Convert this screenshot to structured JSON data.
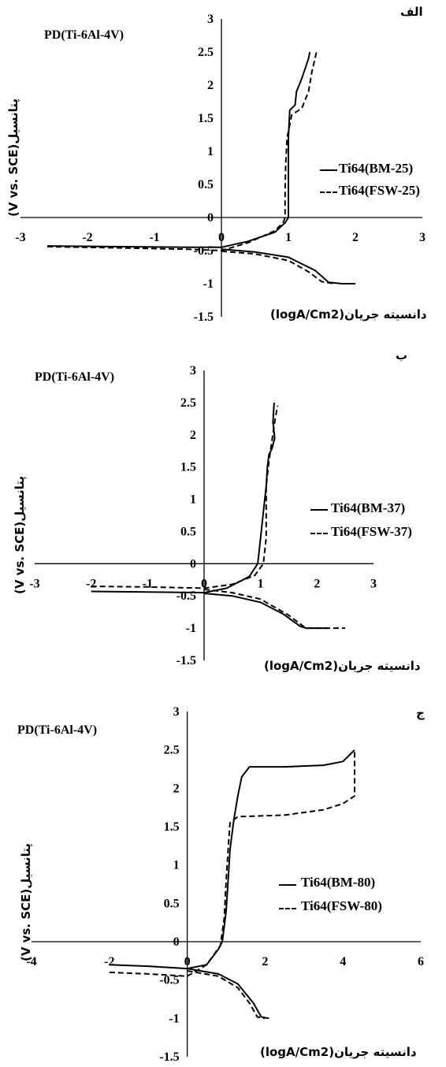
{
  "chart_data": [
    {
      "type": "line",
      "panel_id": "الف",
      "title": "PD(Ti-6Al-4V)",
      "ylabel": "(V vs. SCE)پتانسیل",
      "xlabel": "(logA/Cm2)دانسیته جریان",
      "xlim": [
        -3,
        3
      ],
      "ylim": [
        -1.5,
        3
      ],
      "xticks": [
        "-3",
        "-2",
        "-1",
        "0",
        "1",
        "2",
        "3"
      ],
      "yticks": [
        "-1.5",
        "-1",
        "-0.5",
        "0",
        "0.5",
        "1",
        "1.5",
        "2",
        "2.5",
        "3"
      ],
      "legend_position": "right",
      "series": [
        {
          "name": "Ti64(BM-25)",
          "style": "solid",
          "points": [
            [
              -2.6,
              -0.43
            ],
            [
              -1.5,
              -0.44
            ],
            [
              -0.5,
              -0.45
            ],
            [
              0.0,
              -0.45
            ],
            [
              0.4,
              -0.36
            ],
            [
              0.8,
              -0.22
            ],
            [
              0.95,
              -0.08
            ],
            [
              1.0,
              0.0
            ],
            [
              1.0,
              0.3
            ],
            [
              1.0,
              0.8
            ],
            [
              1.0,
              1.2
            ],
            [
              1.02,
              1.62
            ],
            [
              1.1,
              1.7
            ],
            [
              1.12,
              1.9
            ],
            [
              1.2,
              2.1
            ],
            [
              1.3,
              2.4
            ],
            [
              1.32,
              2.5
            ]
          ]
        },
        {
          "name": "",
          "style": "solid",
          "points": [
            [
              0.0,
              -0.48
            ],
            [
              0.5,
              -0.52
            ],
            [
              1.0,
              -0.6
            ],
            [
              1.4,
              -0.8
            ],
            [
              1.6,
              -0.98
            ],
            [
              1.8,
              -1.0
            ],
            [
              2.0,
              -1.0
            ]
          ]
        },
        {
          "name": "Ti64(FSW-25)",
          "style": "dashed",
          "points": [
            [
              -2.6,
              -0.44
            ],
            [
              -1.5,
              -0.46
            ],
            [
              -0.5,
              -0.48
            ],
            [
              0.0,
              -0.5
            ],
            [
              0.4,
              -0.38
            ],
            [
              0.8,
              -0.2
            ],
            [
              0.92,
              -0.08
            ],
            [
              0.95,
              0.0
            ],
            [
              0.95,
              0.4
            ],
            [
              0.96,
              0.8
            ],
            [
              0.98,
              1.2
            ],
            [
              1.05,
              1.55
            ],
            [
              1.2,
              1.65
            ],
            [
              1.3,
              1.9
            ],
            [
              1.35,
              2.2
            ],
            [
              1.42,
              2.5
            ]
          ]
        },
        {
          "name": "",
          "style": "dashed",
          "points": [
            [
              0.0,
              -0.51
            ],
            [
              0.5,
              -0.55
            ],
            [
              1.0,
              -0.65
            ],
            [
              1.3,
              -0.82
            ],
            [
              1.5,
              -0.97
            ],
            [
              1.7,
              -1.0
            ]
          ]
        }
      ]
    },
    {
      "type": "line",
      "panel_id": "ب",
      "title": "PD(Ti-6Al-4V)",
      "ylabel": "(V vs. SCE)پتانسیل",
      "xlabel": "(logA/Cm2)دانسیته جریان",
      "xlim": [
        -3,
        3
      ],
      "ylim": [
        -1.5,
        3
      ],
      "xticks": [
        "-3",
        "-2",
        "-1",
        "0",
        "1",
        "2",
        "3"
      ],
      "yticks": [
        "-1.5",
        "-1",
        "-0.5",
        "0",
        "0.5",
        "1",
        "1.5",
        "2",
        "2.5",
        "3"
      ],
      "legend_position": "right",
      "series": [
        {
          "name": "Ti64(BM-37)",
          "style": "solid",
          "points": [
            [
              -2.0,
              -0.43
            ],
            [
              -1.0,
              -0.44
            ],
            [
              0.0,
              -0.45
            ],
            [
              0.4,
              -0.38
            ],
            [
              0.8,
              -0.2
            ],
            [
              0.95,
              0.0
            ],
            [
              1.0,
              0.4
            ],
            [
              1.05,
              0.8
            ],
            [
              1.1,
              1.2
            ],
            [
              1.12,
              1.5
            ],
            [
              1.15,
              1.7
            ],
            [
              1.2,
              1.78
            ],
            [
              1.25,
              1.95
            ],
            [
              1.22,
              2.2
            ],
            [
              1.24,
              2.5
            ]
          ]
        },
        {
          "name": "",
          "style": "solid",
          "points": [
            [
              0.0,
              -0.46
            ],
            [
              0.5,
              -0.5
            ],
            [
              1.0,
              -0.6
            ],
            [
              1.4,
              -0.78
            ],
            [
              1.7,
              -0.97
            ],
            [
              1.8,
              -1.0
            ],
            [
              2.2,
              -1.0
            ]
          ]
        },
        {
          "name": "Ti64(FSW-37)",
          "style": "dashed",
          "points": [
            [
              -2.0,
              -0.35
            ],
            [
              -1.0,
              -0.36
            ],
            [
              0.0,
              -0.38
            ],
            [
              0.5,
              -0.32
            ],
            [
              0.9,
              -0.18
            ],
            [
              1.05,
              0.0
            ],
            [
              1.1,
              0.4
            ],
            [
              1.1,
              0.8
            ],
            [
              1.1,
              1.2
            ],
            [
              1.15,
              1.6
            ],
            [
              1.2,
              1.9
            ],
            [
              1.25,
              2.2
            ],
            [
              1.3,
              2.45
            ]
          ]
        },
        {
          "name": "",
          "style": "dashed",
          "points": [
            [
              0.0,
              -0.4
            ],
            [
              0.5,
              -0.45
            ],
            [
              1.0,
              -0.55
            ],
            [
              1.5,
              -0.8
            ],
            [
              1.8,
              -1.0
            ],
            [
              2.2,
              -1.0
            ],
            [
              2.5,
              -1.0
            ]
          ]
        }
      ]
    },
    {
      "type": "line",
      "panel_id": "ج",
      "title": "PD(Ti-6Al-4V)",
      "ylabel": "(V vs. SCE)پتانسیل",
      "xlabel": "(logA/Cm2)دانسیته جریان",
      "xlim": [
        -4,
        6
      ],
      "ylim": [
        -1.5,
        3
      ],
      "xticks": [
        "-4",
        "-2",
        "0",
        "2",
        "4",
        "6"
      ],
      "yticks": [
        "-1.5",
        "-1",
        "-0.5",
        "0",
        "0.5",
        "1",
        "1.5",
        "2",
        "2.5",
        "3"
      ],
      "legend_position": "right",
      "series": [
        {
          "name": "Ti64(BM-80)",
          "style": "solid",
          "points": [
            [
              -2.0,
              -0.3
            ],
            [
              -1.0,
              -0.32
            ],
            [
              0.0,
              -0.35
            ],
            [
              0.5,
              -0.3
            ],
            [
              0.8,
              -0.1
            ],
            [
              0.9,
              0.0
            ],
            [
              1.0,
              0.4
            ],
            [
              1.05,
              0.8
            ],
            [
              1.1,
              1.2
            ],
            [
              1.2,
              1.6
            ],
            [
              1.3,
              1.9
            ],
            [
              1.4,
              2.15
            ],
            [
              1.6,
              2.28
            ],
            [
              2.5,
              2.28
            ],
            [
              3.5,
              2.3
            ],
            [
              4.0,
              2.35
            ],
            [
              4.2,
              2.45
            ],
            [
              4.3,
              2.5
            ]
          ]
        },
        {
          "name": "",
          "style": "solid",
          "points": [
            [
              0.0,
              -0.35
            ],
            [
              0.8,
              -0.42
            ],
            [
              1.3,
              -0.55
            ],
            [
              1.7,
              -0.8
            ],
            [
              1.9,
              -0.98
            ],
            [
              2.1,
              -1.0
            ]
          ]
        },
        {
          "name": "Ti64(FSW-80)",
          "style": "dashed",
          "points": [
            [
              -2.0,
              -0.4
            ],
            [
              -1.0,
              -0.42
            ],
            [
              0.0,
              -0.45
            ],
            [
              0.5,
              -0.3
            ],
            [
              0.85,
              -0.05
            ],
            [
              0.95,
              0.3
            ],
            [
              1.0,
              0.8
            ],
            [
              1.05,
              1.2
            ],
            [
              1.1,
              1.55
            ],
            [
              1.3,
              1.63
            ],
            [
              2.5,
              1.65
            ],
            [
              3.5,
              1.72
            ],
            [
              4.0,
              1.8
            ],
            [
              4.3,
              1.9
            ],
            [
              4.3,
              2.2
            ],
            [
              4.3,
              2.5
            ]
          ]
        },
        {
          "name": "",
          "style": "dashed",
          "points": [
            [
              0.0,
              -0.38
            ],
            [
              0.8,
              -0.45
            ],
            [
              1.3,
              -0.6
            ],
            [
              1.6,
              -0.8
            ],
            [
              1.8,
              -0.98
            ],
            [
              2.0,
              -1.0
            ]
          ]
        }
      ]
    }
  ]
}
